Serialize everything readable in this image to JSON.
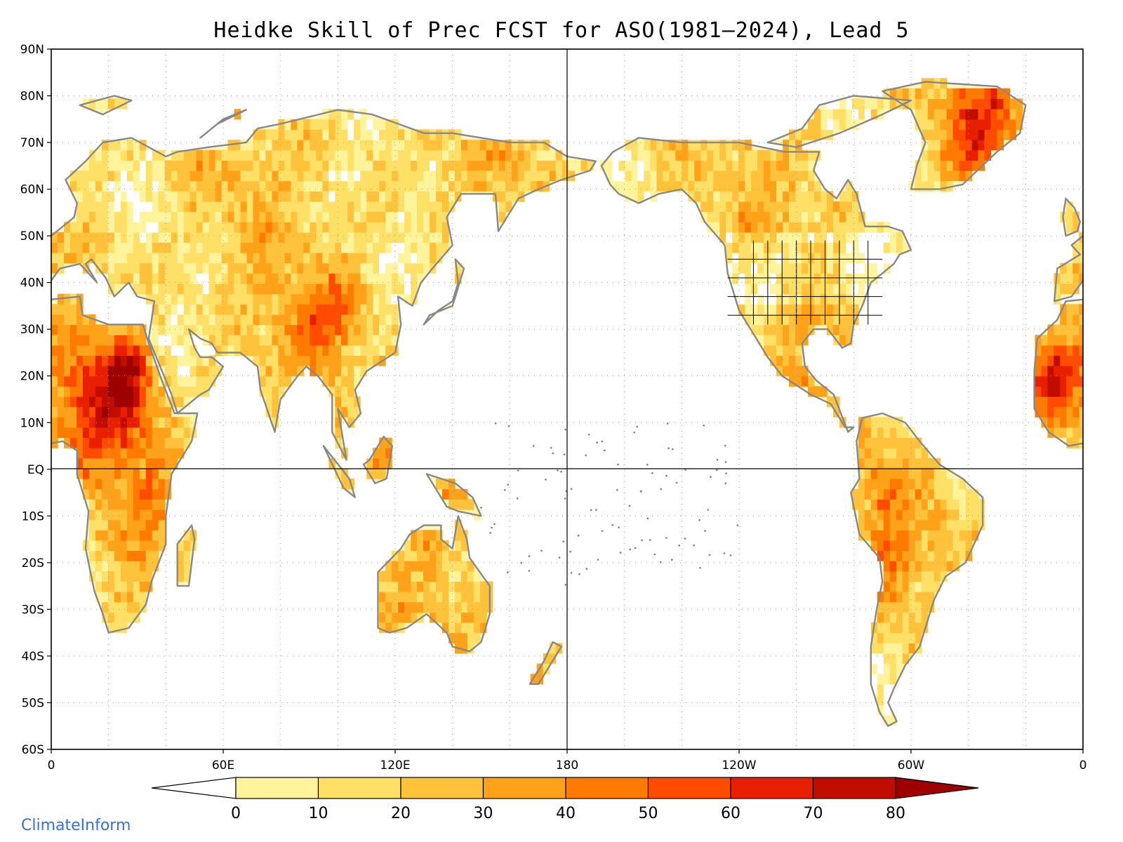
{
  "title": "Heidke Skill of Prec FCST for ASO(1981–2024), Lead 5",
  "credit": "ClimateInform",
  "map": {
    "projection": "equirectangular, centered at 180",
    "lon_range": [
      0,
      360
    ],
    "lat_range": [
      -60,
      90
    ],
    "grid": "dotted",
    "reference_lines": [
      "EQ",
      "180"
    ],
    "land_color": "#888888",
    "lat_labels": [
      "90N",
      "80N",
      "70N",
      "60N",
      "50N",
      "40N",
      "30N",
      "20N",
      "10N",
      "EQ",
      "10S",
      "20S",
      "30S",
      "40S",
      "50S",
      "60S"
    ],
    "lon_labels": [
      "0",
      "60E",
      "120E",
      "180",
      "120W",
      "60W",
      "0"
    ]
  },
  "colorbar": {
    "labels": [
      "0",
      "10",
      "20",
      "30",
      "40",
      "50",
      "60",
      "70",
      "80"
    ],
    "colors": [
      "#ffffff",
      "#fff39b",
      "#ffe066",
      "#ffc23a",
      "#ffa21a",
      "#ff7a00",
      "#ff4c00",
      "#e82000",
      "#c10d00",
      "#9e0000"
    ]
  }
}
